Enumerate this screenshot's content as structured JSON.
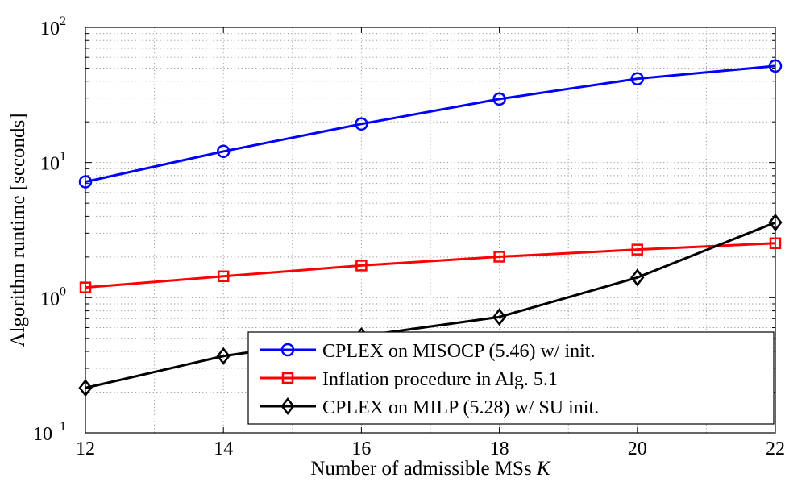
{
  "chart_data": {
    "type": "line",
    "title": "",
    "xlabel": "Number of admissible MSs",
    "xlabel_var": "K",
    "ylabel": "Algorithm runtime [seconds]",
    "x": [
      12,
      14,
      16,
      18,
      20,
      22
    ],
    "xlim": [
      12,
      22
    ],
    "ylim": [
      0.1,
      100
    ],
    "yscale": "log",
    "grid": true,
    "legend_position": "bottom-right",
    "x_ticks": [
      "12",
      "14",
      "16",
      "18",
      "20",
      "22"
    ],
    "y_ticks": [
      {
        "base": "10",
        "exp": "−1",
        "value": 0.1
      },
      {
        "base": "10",
        "exp": "0",
        "value": 1
      },
      {
        "base": "10",
        "exp": "1",
        "value": 10
      },
      {
        "base": "10",
        "exp": "2",
        "value": 100
      }
    ],
    "series": [
      {
        "name": "CPLEX on MISOCP (5.46) w/ init.",
        "color": "#0000ff",
        "marker": "circle",
        "values": [
          7.2,
          12.1,
          19.3,
          29.5,
          41.7,
          51.8
        ]
      },
      {
        "name": "Inflation procedure in Alg. 5.1",
        "color": "#ff0000",
        "marker": "square",
        "values": [
          1.19,
          1.44,
          1.73,
          2.01,
          2.27,
          2.53
        ]
      },
      {
        "name": "CPLEX on MILP (5.28) w/ SU init.",
        "color": "#000000",
        "marker": "diamond",
        "values": [
          0.215,
          0.37,
          0.52,
          0.72,
          1.41,
          3.6
        ]
      }
    ]
  }
}
